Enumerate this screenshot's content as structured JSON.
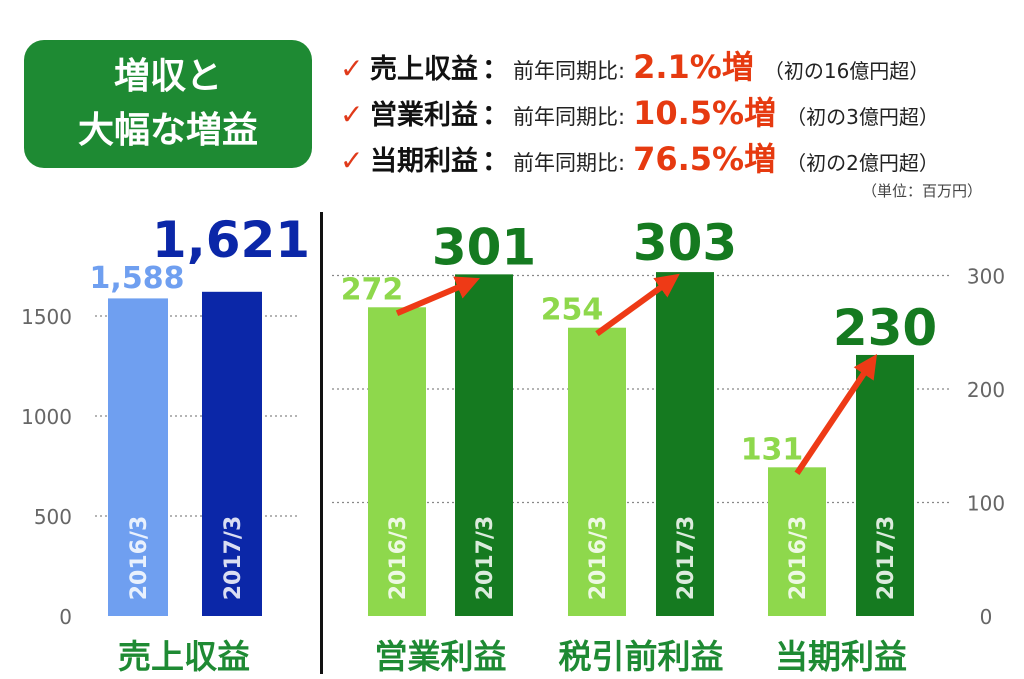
{
  "badge": {
    "line1": "増収と",
    "line2": "大幅な増益"
  },
  "kpis": [
    {
      "check": "✓",
      "name": "売上収益",
      "colon": "：",
      "prefix": "前年同期比:",
      "value": "2.1%増",
      "note": "（初の16億円超）"
    },
    {
      "check": "✓",
      "name": "営業利益",
      "colon": "：",
      "prefix": "前年同期比:",
      "value": "10.5%増",
      "note": "（初の3億円超）"
    },
    {
      "check": "✓",
      "name": "当期利益",
      "colon": "：",
      "prefix": "前年同期比:",
      "value": "76.5%増",
      "note": "（初の2億円超）"
    }
  ],
  "unit_label": "（単位：百万円）",
  "colors": {
    "revenue_2016": "#6f9ff0",
    "revenue_2017": "#0b27a8",
    "profit_2016": "#8ed84c",
    "profit_2017": "#157a20",
    "arrow": "#ee3a16",
    "badge": "#1e8a33"
  },
  "chart_data": [
    {
      "type": "bar",
      "categories": [
        "売上収益"
      ],
      "series": [
        {
          "name": "2016/3",
          "values": [
            1588
          ],
          "labels": [
            "1,588"
          ]
        },
        {
          "name": "2017/3",
          "values": [
            1621
          ],
          "labels": [
            "1,621"
          ]
        }
      ],
      "ylim": [
        0,
        2000
      ],
      "yticks": [
        0,
        500,
        1000,
        1500
      ],
      "ytick_labels": [
        "0",
        "500",
        "1000",
        "1500"
      ],
      "axis_side": "left",
      "grid": true
    },
    {
      "type": "bar",
      "categories": [
        "営業利益",
        "税引前利益",
        "当期利益"
      ],
      "series": [
        {
          "name": "2016/3",
          "values": [
            272,
            254,
            131
          ],
          "labels": [
            "272",
            "254",
            "131"
          ]
        },
        {
          "name": "2017/3",
          "values": [
            301,
            303,
            230
          ],
          "labels": [
            "301",
            "303",
            "230"
          ]
        }
      ],
      "ylim": [
        0,
        300
      ],
      "yticks": [
        0,
        100,
        200,
        300
      ],
      "ytick_labels": [
        "0",
        "100",
        "200",
        "300"
      ],
      "axis_side": "right",
      "grid": true,
      "annotations": "red arrows from 2016/3 to 2017/3 bar tops"
    }
  ]
}
